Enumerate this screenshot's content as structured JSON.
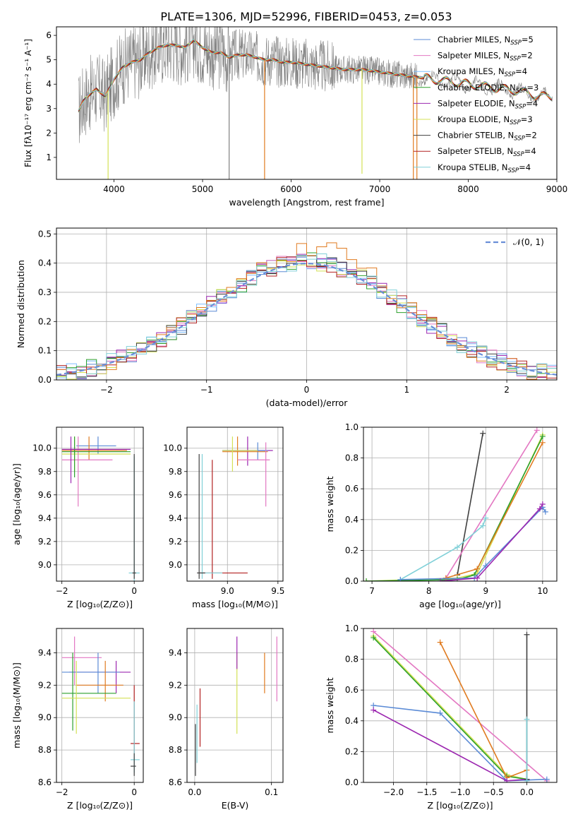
{
  "figure": {
    "title": "PLATE=1306, MJD=52996, FIBERID=0453, z=0.053",
    "colors": {
      "chabrier_miles": "#5b8bd6",
      "salpeter_miles": "#e377c2",
      "kroupa_miles": "#7fbfff",
      "chabrier_elodie": "#2ca02c",
      "salpeter_elodie": "#9c27b0",
      "kroupa_elodie": "#d4e157",
      "chabrier_stelib": "#404040",
      "salpeter_stelib": "#b22222",
      "kroupa_stelib": "#80d0d8",
      "orange": "#e07b20",
      "gray": "#808080",
      "normal": "#6a8fd8"
    }
  },
  "chart_data": [
    {
      "id": "spectrum",
      "type": "line",
      "xlabel": "wavelength [Angstrom, rest frame]",
      "ylabel": "Flux [fλ10⁻¹⁷ erg cm⁻² s⁻¹ A⁻¹]",
      "xlim": [
        3350,
        9000
      ],
      "ylim": [
        0.1,
        6.35
      ],
      "xticks": [
        "4000",
        "5000",
        "6000",
        "7000",
        "8000",
        "9000"
      ],
      "yticks": [
        "1",
        "2",
        "3",
        "4",
        "5",
        "6"
      ],
      "legend_position": "upper-right",
      "legend": [
        {
          "name": "Chabrier MILES, N$_{SSP}$=5",
          "label": "Chabrier MILES, N",
          "sub": "SSP",
          "suffix": "=5",
          "color_key": "chabrier_miles"
        },
        {
          "name": "Salpeter MILES, N$_{SSP}$=2",
          "label": "Salpeter MILES, N",
          "sub": "SSP",
          "suffix": "=2",
          "color_key": "salpeter_miles"
        },
        {
          "name": "Kroupa MILES, N$_{SSP}$=4",
          "label": "Kroupa MILES, N",
          "sub": "SSP",
          "suffix": "=4",
          "color_key": "kroupa_miles"
        },
        {
          "name": "Chabrier ELODIE, N$_{SSP}$=3",
          "label": "Chabrier ELODIE, N",
          "sub": "SSP",
          "suffix": "=3",
          "color_key": "chabrier_elodie"
        },
        {
          "name": "Salpeter ELODIE, N$_{SSP}$=4",
          "label": "Salpeter ELODIE, N",
          "sub": "SSP",
          "suffix": "=4",
          "color_key": "salpeter_elodie"
        },
        {
          "name": "Kroupa ELODIE, N$_{SSP}$=3",
          "label": "Kroupa ELODIE, N",
          "sub": "SSP",
          "suffix": "=3",
          "color_key": "kroupa_elodie"
        },
        {
          "name": "Chabrier STELIB, N$_{SSP}$=2",
          "label": "Chabrier STELIB, N",
          "sub": "SSP",
          "suffix": "=2",
          "color_key": "chabrier_stelib"
        },
        {
          "name": "Salpeter STELIB, N$_{SSP}$=4",
          "label": "Salpeter STELIB, N",
          "sub": "SSP",
          "suffix": "=4",
          "color_key": "salpeter_stelib"
        },
        {
          "name": "Kroupa STELIB, N$_{SSP}$=4",
          "label": "Kroupa STELIB, N",
          "sub": "SSP",
          "suffix": "=4",
          "color_key": "kroupa_stelib"
        }
      ],
      "continuum": {
        "x": [
          3600,
          3650,
          3700,
          3800,
          3900,
          4000,
          4100,
          4200,
          4300,
          4400,
          4500,
          4600,
          4700,
          4800,
          4900,
          5000,
          5100,
          5200,
          5300,
          5400,
          5500,
          5600,
          5700,
          5800,
          5900,
          6000,
          6200,
          6400,
          6600,
          6800,
          7000,
          7200,
          7400,
          7600,
          7800,
          8000,
          8200,
          8400,
          8600,
          8800,
          8950
        ],
        "y": [
          2.9,
          3.3,
          3.5,
          3.8,
          3.5,
          4.2,
          4.7,
          4.9,
          5.0,
          5.3,
          5.5,
          5.6,
          5.6,
          5.5,
          5.8,
          5.5,
          5.3,
          5.3,
          5.1,
          5.2,
          5.2,
          5.1,
          5.0,
          5.0,
          4.9,
          4.9,
          4.8,
          4.7,
          4.6,
          4.6,
          4.5,
          4.4,
          4.3,
          4.2,
          4.1,
          4.0,
          3.9,
          3.8,
          3.7,
          3.5,
          3.5
        ]
      },
      "absorption_dips": [
        {
          "x": 3933,
          "ymin": 0.1,
          "color_key": "kroupa_elodie"
        },
        {
          "x": 5300,
          "ymin": 0.1,
          "color_key": "gray"
        },
        {
          "x": 5700,
          "ymin": 0.1,
          "color_key": "orange"
        },
        {
          "x": 6800,
          "ymin": 0.5,
          "color_key": "kroupa_elodie"
        },
        {
          "x": 7380,
          "ymin": 0.1,
          "color_key": "orange"
        },
        {
          "x": 7420,
          "ymin": 0.1,
          "color_key": "orange"
        }
      ]
    },
    {
      "id": "residuals",
      "type": "line",
      "xlabel": "(data-model)/error",
      "ylabel": "Normed distribution",
      "xlim": [
        -2.5,
        2.5
      ],
      "ylim": [
        0.0,
        0.52
      ],
      "xticks": [
        "−2",
        "−1",
        "0",
        "1",
        "2"
      ],
      "yticks": [
        "0.0",
        "0.1",
        "0.2",
        "0.3",
        "0.4",
        "0.5"
      ],
      "legend_position": "upper-right",
      "legend": [
        {
          "name": "𝒩(0, 1)",
          "color_key": "normal"
        }
      ],
      "hist_bins": [
        -2.5,
        2.5,
        50
      ]
    },
    {
      "id": "age-vs-Z",
      "type": "scatter",
      "xlabel": "Z [log₁₀(Z/Z⊙)]",
      "ylabel": "age  [log₁₀(age/yr)]",
      "xlim": [
        -2.15,
        0.25
      ],
      "ylim": [
        8.86,
        10.18
      ],
      "xticks": [
        "−2",
        "0"
      ],
      "yticks": [
        "9.0",
        "9.2",
        "9.4",
        "9.6",
        "9.8",
        "10.0"
      ],
      "points": [
        {
          "x": -1.0,
          "y": 10.02,
          "xe": [
            -1.6,
            -0.5
          ],
          "ye": [
            9.95,
            10.1
          ],
          "color_key": "chabrier_miles"
        },
        {
          "x": -1.25,
          "y": 9.98,
          "xe": [
            -2.0,
            -0.2
          ],
          "ye": [
            9.9,
            10.1
          ],
          "color_key": "orange"
        },
        {
          "x": -1.65,
          "y": 9.95,
          "xe": [
            -2.0,
            -0.1
          ],
          "ye": [
            9.8,
            10.1
          ],
          "color_key": "kroupa_elodie"
        },
        {
          "x": -1.55,
          "y": 9.9,
          "xe": [
            -2.0,
            -0.6
          ],
          "ye": [
            9.5,
            10.1
          ],
          "color_key": "salpeter_miles"
        },
        {
          "x": -1.65,
          "y": 9.97,
          "xe": [
            -2.0,
            -0.1
          ],
          "ye": [
            9.75,
            10.1
          ],
          "color_key": "chabrier_elodie"
        },
        {
          "x": -1.75,
          "y": 9.99,
          "xe": [
            -2.0,
            -0.1
          ],
          "ye": [
            9.7,
            10.1
          ],
          "color_key": "salpeter_elodie"
        },
        {
          "x": 0.0,
          "y": 8.93,
          "xe": [
            -0.15,
            0.15
          ],
          "ye": [
            8.85,
            9.93
          ],
          "color_key": "kroupa_stelib"
        },
        {
          "x": 0.0,
          "y": 8.93,
          "xe": [
            -0.05,
            0.05
          ],
          "ye": [
            8.88,
            9.95
          ],
          "color_key": "chabrier_stelib"
        }
      ]
    },
    {
      "id": "age-vs-mass",
      "type": "scatter",
      "xlabel": "mass [log₁₀(M/M⊙)]",
      "ylabel": "",
      "xlim": [
        8.6,
        9.55
      ],
      "ylim": [
        8.86,
        10.18
      ],
      "xticks": [
        "9.0",
        "9.5"
      ],
      "yticks": [
        "9.0",
        "9.2",
        "9.4",
        "9.6",
        "9.8",
        "10.0"
      ],
      "points": [
        {
          "x": 9.2,
          "y": 9.98,
          "xe": [
            8.95,
            9.45
          ],
          "ye": [
            9.85,
            10.1
          ],
          "color_key": "salpeter_elodie"
        },
        {
          "x": 9.3,
          "y": 9.98,
          "xe": [
            8.95,
            9.4
          ],
          "ye": [
            9.9,
            10.05
          ],
          "color_key": "chabrier_miles"
        },
        {
          "x": 9.1,
          "y": 9.97,
          "xe": [
            8.95,
            9.4
          ],
          "ye": [
            9.85,
            10.1
          ],
          "color_key": "orange"
        },
        {
          "x": 9.38,
          "y": 9.9,
          "xe": [
            9.1,
            9.42
          ],
          "ye": [
            9.5,
            10.05
          ],
          "color_key": "salpeter_miles"
        },
        {
          "x": 9.05,
          "y": 9.98,
          "xe": [
            8.95,
            9.3
          ],
          "ye": [
            9.8,
            10.1
          ],
          "color_key": "kroupa_elodie"
        },
        {
          "x": 8.85,
          "y": 8.93,
          "xe": [
            8.7,
            9.2
          ],
          "ye": [
            8.88,
            9.9
          ],
          "color_key": "salpeter_stelib"
        },
        {
          "x": 8.75,
          "y": 8.93,
          "xe": [
            8.7,
            8.95
          ],
          "ye": [
            8.88,
            9.95
          ],
          "color_key": "kroupa_stelib"
        },
        {
          "x": 8.72,
          "y": 8.93,
          "xe": [
            8.7,
            8.78
          ],
          "ye": [
            8.88,
            9.95
          ],
          "color_key": "chabrier_stelib"
        }
      ]
    },
    {
      "id": "massweight-vs-age",
      "type": "line",
      "xlabel": "age  [log₁₀(age/yr)]",
      "ylabel": "mass weight",
      "xlim": [
        6.85,
        10.25
      ],
      "ylim": [
        0.0,
        1.0
      ],
      "xticks": [
        "7",
        "8",
        "9",
        "10"
      ],
      "yticks": [
        "0.0",
        "0.2",
        "0.4",
        "0.6",
        "0.8",
        "1.0"
      ],
      "series": [
        {
          "color_key": "chabrier_stelib",
          "x": [
            8.5,
            8.95
          ],
          "y": [
            0.04,
            0.96
          ]
        },
        {
          "color_key": "salpeter_miles",
          "x": [
            8.3,
            9.9
          ],
          "y": [
            0.02,
            0.98
          ]
        },
        {
          "color_key": "kroupa_elodie",
          "x": [
            6.9,
            8.5,
            8.85,
            10.0
          ],
          "y": [
            0.0,
            0.02,
            0.05,
            0.95
          ]
        },
        {
          "color_key": "chabrier_elodie",
          "x": [
            6.9,
            8.5,
            8.8,
            10.0
          ],
          "y": [
            0.0,
            0.01,
            0.04,
            0.94
          ]
        },
        {
          "color_key": "orange",
          "x": [
            8.3,
            8.85,
            10.0
          ],
          "y": [
            0.02,
            0.08,
            0.9
          ]
        },
        {
          "color_key": "kroupa_stelib",
          "x": [
            7.5,
            8.5,
            8.95,
            9.0
          ],
          "y": [
            0.01,
            0.22,
            0.36,
            0.41
          ]
        },
        {
          "color_key": "chabrier_miles",
          "x": [
            7.5,
            8.8,
            9.0,
            10.0,
            10.05
          ],
          "y": [
            0.01,
            0.02,
            0.1,
            0.48,
            0.45
          ]
        },
        {
          "color_key": "salpeter_elodie",
          "x": [
            8.2,
            8.85,
            9.95,
            10.0
          ],
          "y": [
            0.0,
            0.02,
            0.47,
            0.5
          ]
        }
      ]
    },
    {
      "id": "mass-vs-Z",
      "type": "scatter",
      "xlabel": "Z [log₁₀(Z/Z⊙)]",
      "ylabel": "mass [log₁₀(M/M⊙)]",
      "xlim": [
        -2.15,
        0.25
      ],
      "ylim": [
        8.6,
        9.55
      ],
      "xticks": [
        "−2",
        "0"
      ],
      "yticks": [
        "8.6",
        "8.8",
        "9.0",
        "9.2",
        "9.4"
      ],
      "points": [
        {
          "x": -1.65,
          "y": 9.37,
          "xe": [
            -2.0,
            -0.9
          ],
          "ye": [
            9.2,
            9.5
          ],
          "color_key": "salpeter_miles"
        },
        {
          "x": -0.5,
          "y": 9.28,
          "xe": [
            -1.8,
            -0.1
          ],
          "ye": [
            9.15,
            9.35
          ],
          "color_key": "salpeter_elodie"
        },
        {
          "x": -1.0,
          "y": 9.28,
          "xe": [
            -2.0,
            -0.4
          ],
          "ye": [
            9.15,
            9.4
          ],
          "color_key": "chabrier_miles"
        },
        {
          "x": -0.8,
          "y": 9.2,
          "xe": [
            -1.6,
            -0.3
          ],
          "ye": [
            9.1,
            9.35
          ],
          "color_key": "orange"
        },
        {
          "x": -1.7,
          "y": 9.15,
          "xe": [
            -2.0,
            -0.5
          ],
          "ye": [
            8.92,
            9.4
          ],
          "color_key": "chabrier_elodie"
        },
        {
          "x": -1.6,
          "y": 9.12,
          "xe": [
            -2.0,
            -0.1
          ],
          "ye": [
            8.9,
            9.35
          ],
          "color_key": "kroupa_elodie"
        },
        {
          "x": 0.0,
          "y": 8.84,
          "xe": [
            -0.1,
            0.15
          ],
          "ye": [
            8.78,
            9.2
          ],
          "color_key": "salpeter_stelib"
        },
        {
          "x": 0.0,
          "y": 8.74,
          "xe": [
            -0.1,
            0.15
          ],
          "ye": [
            8.66,
            9.1
          ],
          "color_key": "kroupa_stelib"
        },
        {
          "x": 0.0,
          "y": 8.7,
          "xe": [
            -0.1,
            0.05
          ],
          "ye": [
            8.64,
            8.78
          ],
          "color_key": "chabrier_stelib"
        }
      ]
    },
    {
      "id": "mass-vs-ebv",
      "type": "scatter",
      "xlabel": "E(B-V)",
      "ylabel": "",
      "xlim": [
        -0.01,
        0.115
      ],
      "ylim": [
        8.6,
        9.55
      ],
      "xticks": [
        "0.0",
        "0.1"
      ],
      "yticks": [
        "8.6",
        "8.8",
        "9.0",
        "9.2",
        "9.4"
      ],
      "points": [
        {
          "x": 0.055,
          "y": 9.15,
          "ye": [
            8.9,
            9.4
          ],
          "color_key": "kroupa_elodie"
        },
        {
          "x": 0.055,
          "y": 9.4,
          "ye": [
            9.3,
            9.5
          ],
          "color_key": "salpeter_elodie"
        },
        {
          "x": 0.091,
          "y": 9.3,
          "ye": [
            9.15,
            9.4
          ],
          "color_key": "orange"
        },
        {
          "x": 0.107,
          "y": 9.3,
          "ye": [
            9.1,
            9.5
          ],
          "color_key": "salpeter_miles"
        },
        {
          "x": 0.007,
          "y": 9.0,
          "ye": [
            8.82,
            9.18
          ],
          "color_key": "salpeter_stelib"
        },
        {
          "x": 0.003,
          "y": 8.9,
          "ye": [
            8.72,
            9.08
          ],
          "color_key": "kroupa_stelib"
        },
        {
          "x": 0.001,
          "y": 8.8,
          "ye": [
            8.64,
            8.96
          ],
          "color_key": "chabrier_stelib"
        }
      ]
    },
    {
      "id": "massweight-vs-Z",
      "type": "line",
      "xlabel": "Z [log₁₀(Z/Z⊙)]",
      "ylabel": "mass weight",
      "xlim": [
        -2.45,
        0.45
      ],
      "ylim": [
        0.0,
        1.0
      ],
      "xticks": [
        "−2.0",
        "−1.5",
        "−1.0",
        "−0.5",
        "0.0"
      ],
      "yticks": [
        "0.0",
        "0.2",
        "0.4",
        "0.6",
        "0.8",
        "1.0"
      ],
      "series": [
        {
          "color_key": "salpeter_miles",
          "x": [
            -2.3,
            0.3
          ],
          "y": [
            0.98,
            0.01
          ]
        },
        {
          "color_key": "kroupa_elodie",
          "x": [
            -2.3,
            -0.3,
            0.0
          ],
          "y": [
            0.95,
            0.05,
            0.02
          ]
        },
        {
          "color_key": "chabrier_elodie",
          "x": [
            -2.3,
            -0.3,
            0.0
          ],
          "y": [
            0.94,
            0.04,
            0.02
          ]
        },
        {
          "color_key": "orange",
          "x": [
            -1.3,
            -0.3,
            0.0
          ],
          "y": [
            0.91,
            0.03,
            0.08
          ]
        },
        {
          "color_key": "chabrier_miles",
          "x": [
            -2.3,
            -1.3,
            -0.3,
            0.3
          ],
          "y": [
            0.5,
            0.45,
            0.01,
            0.02
          ]
        },
        {
          "color_key": "salpeter_elodie",
          "x": [
            -2.3,
            -0.3,
            0.0
          ],
          "y": [
            0.47,
            0.01,
            0.02
          ]
        },
        {
          "color_key": "chabrier_stelib",
          "x": [
            0.0,
            0.0
          ],
          "y": [
            0.96,
            0.02
          ]
        },
        {
          "color_key": "kroupa_stelib",
          "x": [
            0.0,
            0.0
          ],
          "y": [
            0.41,
            0.01
          ]
        }
      ]
    }
  ]
}
